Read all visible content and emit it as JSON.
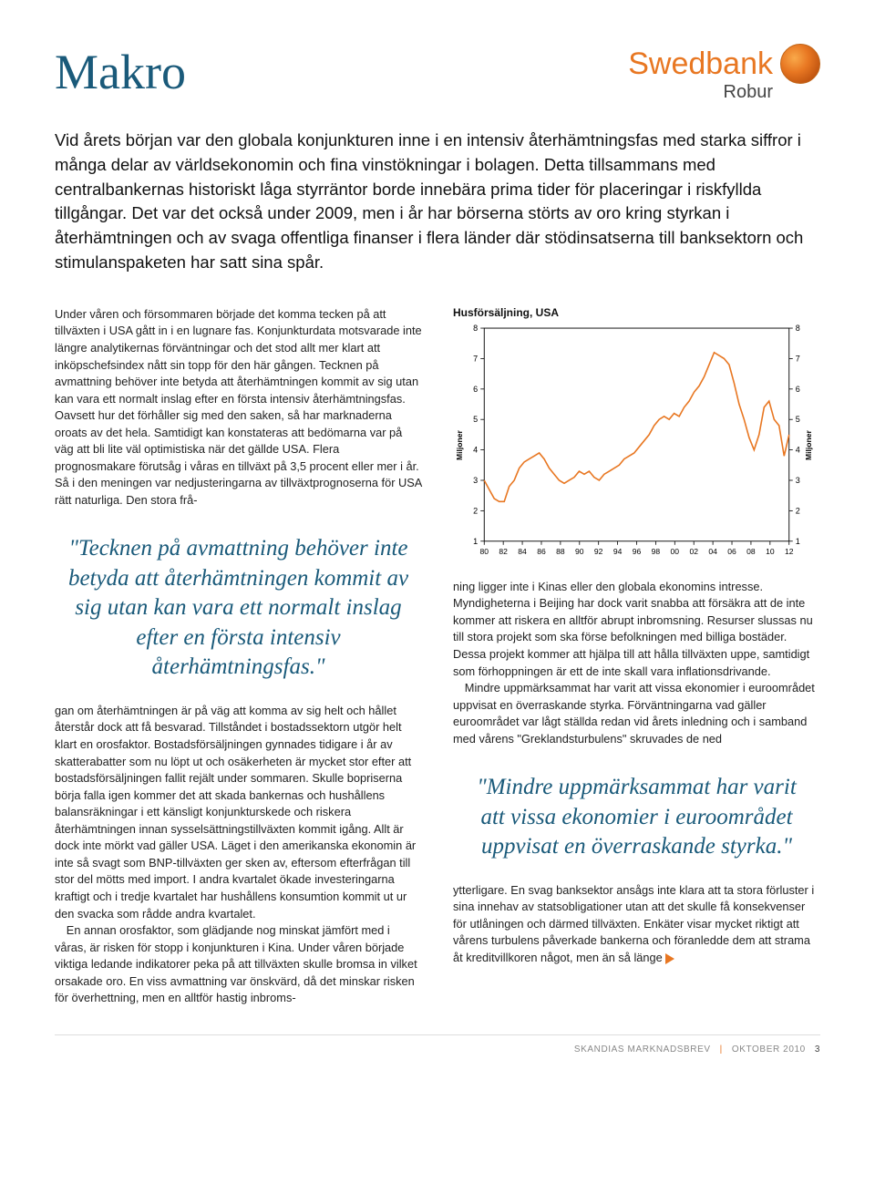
{
  "header": {
    "title": "Makro",
    "brand": "Swedbank",
    "brand_sub": "Robur"
  },
  "intro": "Vid årets början var den globala konjunkturen inne i en intensiv återhämtningsfas med starka siffror i många delar av världsekonomin och fina vinstökningar i bolagen. Detta tillsammans med centralbankernas historiskt låga styrräntor borde innebära prima tider för placeringar i riskfyllda tillgångar. Det var det också under 2009, men i år har börserna störts av oro kring styrkan i återhämtningen och av svaga offentliga finanser i flera länder där stödinsatserna till banksektorn och stimulanspaketen har satt sina spår.",
  "left": {
    "p1": "Under våren och försommaren började det komma tecken på att tillväxten i USA gått in i en lugnare fas. Konjunkturdata motsvarade inte längre analytikernas förväntningar och det stod allt mer klart att inköpschefsindex nått sin topp för den här gången. Tecknen på avmattning behöver inte betyda att återhämtningen kommit av sig utan kan vara ett normalt inslag efter en första intensiv återhämtningsfas. Oavsett hur det förhåller sig med den saken, så har marknaderna oroats av det hela. Samtidigt kan konstateras att bedömarna var på väg att bli lite väl optimistiska när det gällde USA. Flera prognosmakare förutsåg i våras en tillväxt på 3,5 procent eller mer i år. Så i den meningen var nedjusteringarna av tillväxtprognoserna för USA rätt naturliga. Den stora frå-",
    "pullquote": "\"Tecknen på avmattning behöver inte betyda att återhämtningen kommit av sig utan kan vara ett normalt inslag efter en första intensiv återhämtningsfas.\"",
    "p2": "gan om återhämtningen är på väg att komma av sig helt och hållet återstår dock att få besvarad. Tillståndet i bostadssektorn utgör helt klart en orosfaktor. Bostadsförsäljningen gynnades tidigare i år av skatterabatter som nu löpt ut och osäkerheten är mycket stor efter att bostadsförsäljningen fallit rejält under sommaren. Skulle bopriserna börja falla igen kommer det att skada bankernas och hushållens balansräkningar i ett känsligt konjunkturskede och riskera återhämtningen innan sysselsättningstillväxten kommit igång. Allt är dock inte mörkt vad gäller USA. Läget i den amerikanska ekonomin är inte så svagt som BNP-tillväxten ger sken av, eftersom efterfrågan till stor del mötts med import. I andra kvartalet ökade investeringarna kraftigt och i tredje kvartalet har hushållens konsumtion kommit ut ur den svacka som rådde andra kvartalet.",
    "p3": "En annan orosfaktor, som glädjande nog minskat jämfört med i våras, är risken för stopp i konjunkturen i Kina. Under våren började viktiga ledande indikatorer peka på att tillväxten skulle bromsa in vilket orsakade oro. En viss avmattning var önskvärd, då det minskar risken för överhettning, men en alltför hastig inbroms-"
  },
  "right": {
    "chart": {
      "title": "Husförsäljning, USA",
      "type": "line",
      "x_labels": [
        "80",
        "82",
        "84",
        "86",
        "88",
        "90",
        "92",
        "94",
        "96",
        "98",
        "00",
        "02",
        "04",
        "06",
        "08",
        "10",
        "12"
      ],
      "y_ticks": [
        1,
        2,
        3,
        4,
        5,
        6,
        7,
        8
      ],
      "ylim": [
        1,
        8
      ],
      "y_axis_label": "Miljoner",
      "line_color": "#e87722",
      "axis_color": "#000000",
      "grid_color": "#bfbfbf",
      "background_color": "#ffffff",
      "stroke_width": 1.6,
      "series": [
        3.0,
        2.7,
        2.4,
        2.3,
        2.3,
        2.8,
        3.0,
        3.4,
        3.6,
        3.7,
        3.8,
        3.9,
        3.7,
        3.4,
        3.2,
        3.0,
        2.9,
        3.0,
        3.1,
        3.3,
        3.2,
        3.3,
        3.1,
        3.0,
        3.2,
        3.3,
        3.4,
        3.5,
        3.7,
        3.8,
        3.9,
        4.1,
        4.3,
        4.5,
        4.8,
        5.0,
        5.1,
        5.0,
        5.2,
        5.1,
        5.4,
        5.6,
        5.9,
        6.1,
        6.4,
        6.8,
        7.2,
        7.1,
        7.0,
        6.8,
        6.2,
        5.5,
        5.0,
        4.4,
        4.0,
        4.5,
        5.4,
        5.6,
        5.0,
        4.8,
        3.8,
        4.5
      ]
    },
    "p1": "ning ligger inte i Kinas eller den globala ekonomins intresse. Myndigheterna i Beijing har dock varit snabba att försäkra att de inte kommer att riskera en alltför abrupt inbromsning. Resurser slussas nu till stora projekt som ska förse befolkningen med billiga bostäder. Dessa projekt kommer att hjälpa till att hålla tillväxten uppe, samtidigt som förhoppningen är ett de inte skall vara inflationsdrivande.",
    "p2": "Mindre uppmärksammat har varit att vissa ekonomier i euroområdet uppvisat en överraskande styrka. Förväntningarna vad gäller euroområdet var lågt ställda redan vid årets inledning och i samband med vårens \"Greklandsturbulens\" skruvades de ned",
    "pullquote": "\"Mindre uppmärksammat har varit att vissa ekonomier i euroområdet uppvisat en överraskande styrka.\"",
    "p3": "ytterligare. En svag banksektor ansågs inte klara att ta stora förluster i sina innehav av statsobligationer utan att det skulle få konsekvenser för utlåningen och därmed tillväxten. Enkäter visar mycket riktigt att vårens turbulens påverkade bankerna och föranledde dem att strama åt kreditvillkoren något, men än så länge"
  },
  "footer": {
    "text": "SKANDIAS MARKNADSBREV",
    "issue": "OKTOBER 2010",
    "page": "3"
  },
  "colors": {
    "accent_blue": "#1a5a7a",
    "accent_orange": "#e87722"
  }
}
